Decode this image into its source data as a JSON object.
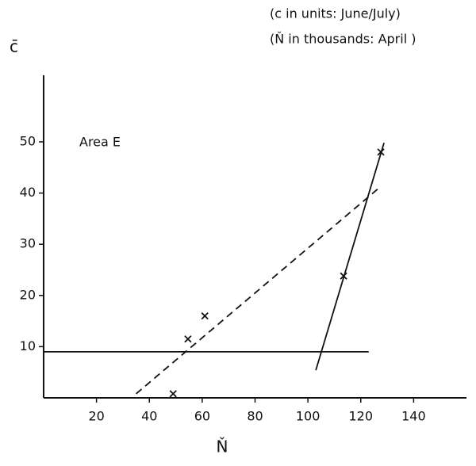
{
  "chart_data": {
    "type": "scatter",
    "annotations": [
      "(c in units: June/July)",
      "(Ň in thousands: April )",
      "Area E"
    ],
    "xlabel": "Ň",
    "ylabel": "c̄",
    "xlim": [
      0,
      160
    ],
    "ylim": [
      0,
      63
    ],
    "xticks": [
      20,
      40,
      60,
      80,
      100,
      120,
      140
    ],
    "yticks": [
      10,
      20,
      30,
      40,
      50
    ],
    "series": [
      {
        "color": "#111111",
        "marker": "x",
        "x": [
          49,
          54.6,
          61,
          113.5,
          127.6
        ],
        "values": [
          0.8,
          11.5,
          16,
          23.8,
          48
        ]
      },
      {
        "color": "#111111",
        "linestyle": "solid",
        "x": [
          0,
          123
        ],
        "values": [
          9,
          9
        ]
      },
      {
        "color": "#111111",
        "linestyle": "dashed",
        "x": [
          35,
          127.6
        ],
        "values": [
          0.8,
          41.3
        ]
      },
      {
        "color": "#111111",
        "linestyle": "solid",
        "x": [
          103,
          128.8
        ],
        "values": [
          5.4,
          49.8
        ]
      }
    ]
  }
}
